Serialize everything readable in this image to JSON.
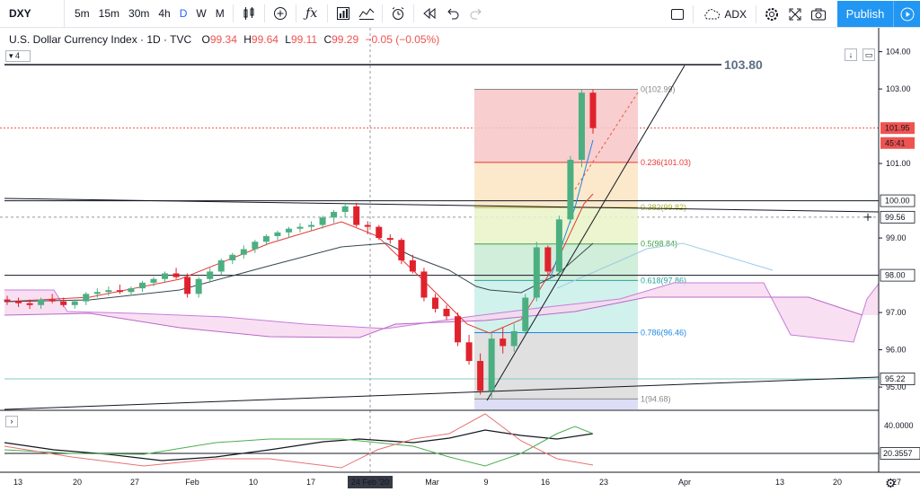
{
  "toolbar": {
    "symbol": "DXY",
    "intervals": [
      "5m",
      "15m",
      "30m",
      "4h",
      "D",
      "W",
      "M"
    ],
    "active_interval": "D",
    "compare_label": "ADX",
    "publish_label": "Publish"
  },
  "legend": {
    "title": "U.S. Dollar Currency Index · 1D · TVC",
    "o_label": "O",
    "o_value": "99.34",
    "h_label": "H",
    "h_value": "99.64",
    "l_label": "L",
    "l_value": "99.11",
    "c_label": "C",
    "c_value": "99.29",
    "change": "−0.05 (−0.05%)",
    "collapse_count": "4"
  },
  "price_axis": {
    "ticks": [
      "104.00",
      "103.00",
      "101.00",
      "100.00",
      "99.00",
      "98.00",
      "97.00",
      "96.00",
      "95.00"
    ],
    "tags": [
      {
        "label": "101.95",
        "color": "#ef5350"
      },
      {
        "label": "45:41",
        "color": "#ef5350"
      },
      {
        "label": "100.00",
        "color": "#ffffff"
      },
      {
        "label": "99.56",
        "color": "#ffffff"
      },
      {
        "label": "98.00",
        "color": "#ffffff"
      },
      {
        "label": "95.22",
        "color": "#ffffff"
      }
    ]
  },
  "annotation_big": "103.80",
  "fib": [
    {
      "label": "0(102.99)",
      "color": "#888888"
    },
    {
      "label": "0.236(101.03)",
      "color": "#e53935"
    },
    {
      "label": "0.382(99.82)",
      "color": "#afb42b"
    },
    {
      "label": "0.5(98.84)",
      "color": "#43a047"
    },
    {
      "label": "0.618(97.86)",
      "color": "#26a69a"
    },
    {
      "label": "0.786(96.46)",
      "color": "#1e88e5"
    },
    {
      "label": "1(94.68)",
      "color": "#888888"
    }
  ],
  "oscillator_axis": {
    "ticks": [
      "40.0000"
    ],
    "tag": "20.3557"
  },
  "time_axis": {
    "labels": [
      "13",
      "20",
      "27",
      "Feb",
      "10",
      "17",
      "24 Feb '20",
      "Mar",
      "9",
      "16",
      "23",
      "Apr",
      "13",
      "20",
      "27"
    ],
    "crosshair_label": "24 Feb '20"
  },
  "chart_data": {
    "type": "candlestick",
    "title": "U.S. Dollar Currency Index · 1D · TVC",
    "price_range": [
      94.4,
      104.4
    ],
    "candles": [
      {
        "o": 97.35,
        "h": 97.45,
        "l": 97.2,
        "c": 97.3
      },
      {
        "o": 97.3,
        "h": 97.4,
        "l": 97.15,
        "c": 97.25
      },
      {
        "o": 97.25,
        "h": 97.35,
        "l": 97.1,
        "c": 97.2
      },
      {
        "o": 97.2,
        "h": 97.4,
        "l": 97.1,
        "c": 97.35
      },
      {
        "o": 97.35,
        "h": 97.5,
        "l": 97.25,
        "c": 97.3
      },
      {
        "o": 97.3,
        "h": 97.4,
        "l": 97.15,
        "c": 97.2
      },
      {
        "o": 97.2,
        "h": 97.35,
        "l": 97.1,
        "c": 97.3
      },
      {
        "o": 97.3,
        "h": 97.55,
        "l": 97.2,
        "c": 97.5
      },
      {
        "o": 97.5,
        "h": 97.65,
        "l": 97.4,
        "c": 97.55
      },
      {
        "o": 97.55,
        "h": 97.7,
        "l": 97.45,
        "c": 97.6
      },
      {
        "o": 97.6,
        "h": 97.75,
        "l": 97.5,
        "c": 97.55
      },
      {
        "o": 97.55,
        "h": 97.7,
        "l": 97.45,
        "c": 97.65
      },
      {
        "o": 97.65,
        "h": 97.85,
        "l": 97.55,
        "c": 97.8
      },
      {
        "o": 97.8,
        "h": 97.95,
        "l": 97.7,
        "c": 97.9
      },
      {
        "o": 97.9,
        "h": 98.1,
        "l": 97.8,
        "c": 98.05
      },
      {
        "o": 98.05,
        "h": 98.2,
        "l": 97.9,
        "c": 97.95
      },
      {
        "o": 97.95,
        "h": 98.05,
        "l": 97.4,
        "c": 97.5
      },
      {
        "o": 97.5,
        "h": 97.95,
        "l": 97.4,
        "c": 97.9
      },
      {
        "o": 97.9,
        "h": 98.2,
        "l": 97.8,
        "c": 98.1
      },
      {
        "o": 98.1,
        "h": 98.45,
        "l": 98.0,
        "c": 98.4
      },
      {
        "o": 98.4,
        "h": 98.6,
        "l": 98.3,
        "c": 98.55
      },
      {
        "o": 98.55,
        "h": 98.8,
        "l": 98.45,
        "c": 98.7
      },
      {
        "o": 98.7,
        "h": 98.95,
        "l": 98.6,
        "c": 98.9
      },
      {
        "o": 98.9,
        "h": 99.1,
        "l": 98.8,
        "c": 99.05
      },
      {
        "o": 99.05,
        "h": 99.2,
        "l": 98.95,
        "c": 99.15
      },
      {
        "o": 99.15,
        "h": 99.3,
        "l": 99.0,
        "c": 99.25
      },
      {
        "o": 99.25,
        "h": 99.4,
        "l": 99.15,
        "c": 99.3
      },
      {
        "o": 99.3,
        "h": 99.45,
        "l": 99.2,
        "c": 99.35
      },
      {
        "o": 99.35,
        "h": 99.6,
        "l": 99.25,
        "c": 99.55
      },
      {
        "o": 99.55,
        "h": 99.75,
        "l": 99.4,
        "c": 99.7
      },
      {
        "o": 99.7,
        "h": 99.95,
        "l": 99.55,
        "c": 99.85
      },
      {
        "o": 99.85,
        "h": 99.95,
        "l": 99.3,
        "c": 99.35
      },
      {
        "o": 99.35,
        "h": 99.45,
        "l": 99.1,
        "c": 99.3
      },
      {
        "o": 99.3,
        "h": 99.35,
        "l": 98.95,
        "c": 99.0
      },
      {
        "o": 99.0,
        "h": 99.1,
        "l": 98.85,
        "c": 98.95
      },
      {
        "o": 98.95,
        "h": 99.0,
        "l": 98.3,
        "c": 98.4
      },
      {
        "o": 98.4,
        "h": 98.55,
        "l": 98.05,
        "c": 98.1
      },
      {
        "o": 98.1,
        "h": 98.2,
        "l": 97.3,
        "c": 97.4
      },
      {
        "o": 97.4,
        "h": 97.5,
        "l": 97.0,
        "c": 97.1
      },
      {
        "o": 97.1,
        "h": 97.2,
        "l": 96.8,
        "c": 96.9
      },
      {
        "o": 96.9,
        "h": 97.0,
        "l": 96.1,
        "c": 96.2
      },
      {
        "o": 96.2,
        "h": 96.4,
        "l": 95.6,
        "c": 95.7
      },
      {
        "o": 95.7,
        "h": 95.9,
        "l": 94.8,
        "c": 94.9
      },
      {
        "o": 94.9,
        "h": 96.5,
        "l": 94.7,
        "c": 96.3
      },
      {
        "o": 96.3,
        "h": 96.6,
        "l": 95.9,
        "c": 96.1
      },
      {
        "o": 96.1,
        "h": 96.7,
        "l": 95.95,
        "c": 96.5
      },
      {
        "o": 96.5,
        "h": 97.5,
        "l": 96.4,
        "c": 97.4
      },
      {
        "o": 97.4,
        "h": 98.9,
        "l": 97.3,
        "c": 98.75
      },
      {
        "o": 98.75,
        "h": 98.8,
        "l": 98.0,
        "c": 98.1
      },
      {
        "o": 98.1,
        "h": 99.6,
        "l": 98.0,
        "c": 99.5
      },
      {
        "o": 99.5,
        "h": 101.2,
        "l": 99.4,
        "c": 101.1
      },
      {
        "o": 101.1,
        "h": 103.0,
        "l": 100.9,
        "c": 102.9
      },
      {
        "o": 102.9,
        "h": 102.99,
        "l": 101.8,
        "c": 101.95
      }
    ]
  }
}
